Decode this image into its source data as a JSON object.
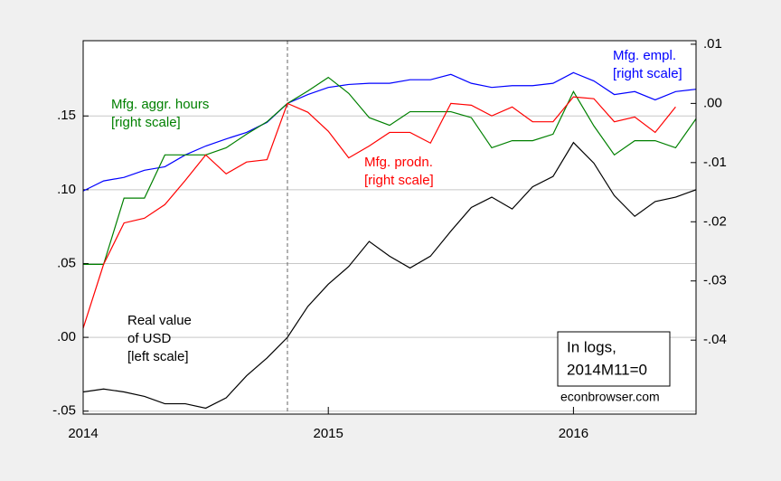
{
  "chart_data": {
    "type": "line",
    "x": [
      2014,
      2014.0833,
      2014.1667,
      2014.25,
      2014.3333,
      2014.4167,
      2014.5,
      2014.5833,
      2014.6667,
      2014.75,
      2014.8333,
      2014.9167,
      2015,
      2015.0833,
      2015.1667,
      2015.25,
      2015.3333,
      2015.4167,
      2015.5,
      2015.5833,
      2015.6667,
      2015.75,
      2015.8333,
      2015.9167,
      2016,
      2016.0833,
      2016.1667,
      2016.25,
      2016.3333,
      2016.4167,
      2016.5
    ],
    "xlim": [
      2014,
      2016.5
    ],
    "xticks": [
      2014,
      2015,
      2016
    ],
    "ylim": [
      -0.052,
      0.201
    ],
    "yticks": [
      {
        "value": -0.05,
        "label": "-.05"
      },
      {
        "value": 0,
        "label": ".00"
      },
      {
        "value": 0.05,
        "label": ".05"
      },
      {
        "value": 0.1,
        "label": ".10"
      },
      {
        "value": 0.15,
        "label": ".15"
      }
    ],
    "y2lim": [
      -0.0525,
      0.0106
    ],
    "y2ticks": [
      {
        "value": 0.01,
        "label": ".01"
      },
      {
        "value": 0,
        "label": ".00"
      },
      {
        "value": -0.01,
        "label": "-.01"
      },
      {
        "value": -0.02,
        "label": "-.02"
      },
      {
        "value": -0.03,
        "label": "-.03"
      },
      {
        "value": -0.04,
        "label": "-.04"
      }
    ],
    "grid": true,
    "vline": 2014.8333,
    "series": [
      {
        "name": "Real value of USD",
        "color": "#000000",
        "axis": "y",
        "values": [
          -0.037,
          -0.035,
          -0.037,
          -0.04,
          -0.045,
          -0.045,
          -0.048,
          -0.041,
          -0.026,
          -0.014,
          0.0,
          0.021,
          0.036,
          0.048,
          0.065,
          0.055,
          0.047,
          0.055,
          0.072,
          0.088,
          0.095,
          0.087,
          0.102,
          0.109,
          0.132,
          0.118,
          0.096,
          0.082,
          0.092,
          0.095,
          0.1
        ]
      },
      {
        "name": "Mfg. empl.",
        "color": "#0000ff",
        "axis": "y2",
        "values": [
          -0.0148,
          -0.0131,
          -0.0125,
          -0.0113,
          -0.0107,
          -0.0087,
          -0.0072,
          -0.006,
          -0.0049,
          -0.0032,
          0.0,
          0.0015,
          0.0027,
          0.0032,
          0.0034,
          0.0034,
          0.004,
          0.004,
          0.0049,
          0.0034,
          0.0027,
          0.003,
          0.003,
          0.0034,
          0.0052,
          0.0038,
          0.0015,
          0.002,
          0.0006,
          0.002,
          0.0024
        ]
      },
      {
        "name": "Mfg. aggr. hours",
        "color": "#008000",
        "axis": "y2",
        "values": [
          -0.0272,
          -0.0272,
          -0.016,
          -0.016,
          -0.0087,
          -0.0087,
          -0.0087,
          -0.0075,
          -0.0052,
          -0.0031,
          0.0,
          0.0021,
          0.0044,
          0.0017,
          -0.0024,
          -0.0037,
          -0.0014,
          -0.0014,
          -0.0014,
          -0.0024,
          -0.0075,
          -0.0063,
          -0.0063,
          -0.0052,
          0.002,
          -0.0038,
          -0.0087,
          -0.0063,
          -0.0063,
          -0.0075,
          -0.0026
        ]
      },
      {
        "name": "Mfg. prodn.",
        "color": "#ff0000",
        "axis": "y2",
        "values": [
          -0.038,
          -0.0272,
          -0.0202,
          -0.0194,
          -0.0171,
          -0.013,
          -0.0087,
          -0.0119,
          -0.0099,
          -0.0095,
          0.0,
          -0.0015,
          -0.0047,
          -0.0092,
          -0.0072,
          -0.0049,
          -0.0049,
          -0.0067,
          0.0,
          -0.0003,
          -0.0021,
          -0.0006,
          -0.0031,
          -0.0031,
          0.0011,
          0.0008,
          -0.0031,
          -0.0023,
          -0.0049,
          -0.0006,
          null
        ]
      }
    ],
    "annotations": [
      {
        "lines": [
          "Mfg. empl.",
          "[right scale]"
        ],
        "color": "#0000ff"
      },
      {
        "lines": [
          "Mfg. aggr. hours",
          "[right scale]"
        ],
        "color": "#008000"
      },
      {
        "lines": [
          "Mfg. prodn.",
          "[right scale]"
        ],
        "color": "#ff0000"
      },
      {
        "lines": [
          "Real value",
          "of USD",
          "[left scale]"
        ],
        "color": "#000000"
      }
    ],
    "note": [
      "In logs,",
      "2014M11=0"
    ],
    "source": "econbrowser.com"
  }
}
